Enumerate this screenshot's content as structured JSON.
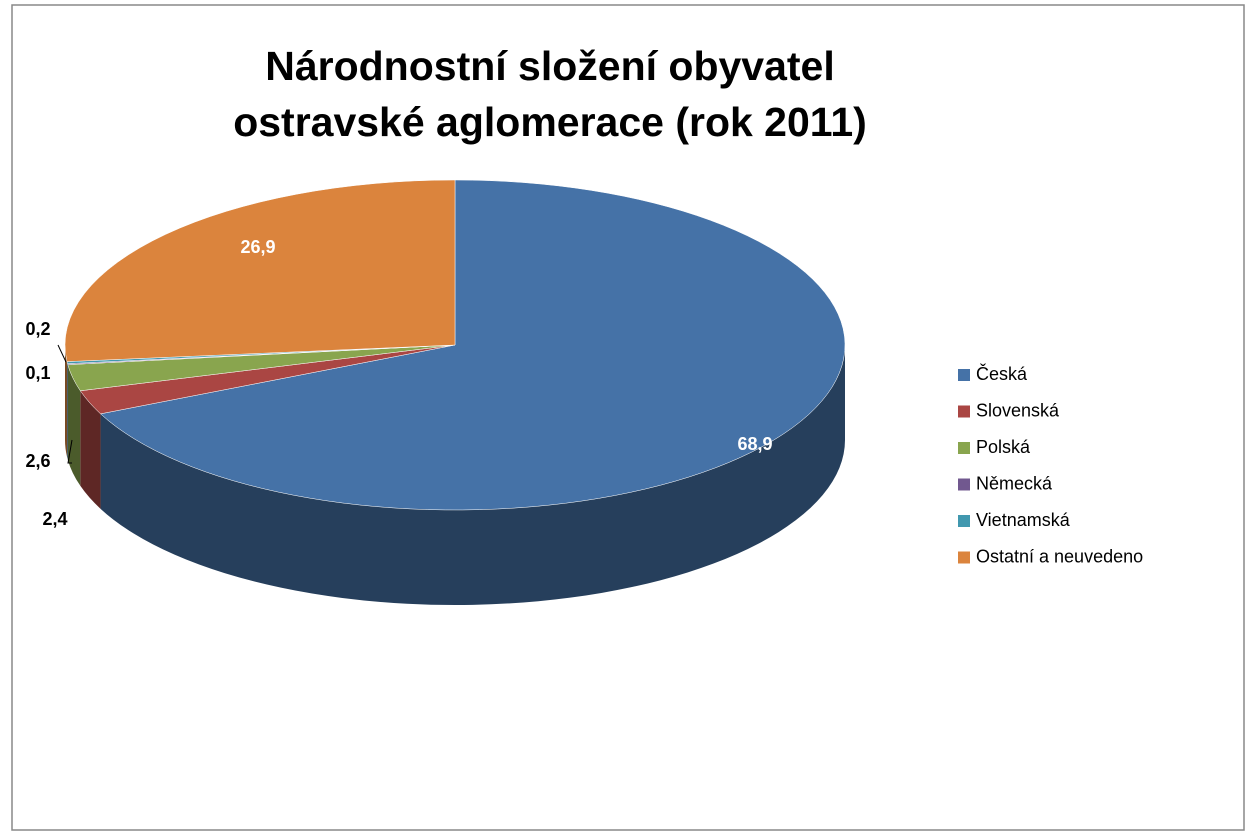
{
  "chart_data": {
    "type": "pie",
    "title": "Národnostní složení obyvatel ostravské aglomerace (rok 2011)",
    "categories": [
      "Česká",
      "Slovenská",
      "Polská",
      "Německá",
      "Vietnamská",
      "Ostatní a neuvedeno"
    ],
    "values": [
      68.9,
      2.4,
      2.6,
      0.1,
      0.2,
      26.9
    ],
    "value_labels": [
      "68,9",
      "2,4",
      "2,6",
      "0,1",
      "0,2",
      "26,9"
    ],
    "colors": [
      "#4572a7",
      "#aa4643",
      "#89a54e",
      "#71588f",
      "#4198af",
      "#db843d"
    ],
    "legend": "right"
  }
}
